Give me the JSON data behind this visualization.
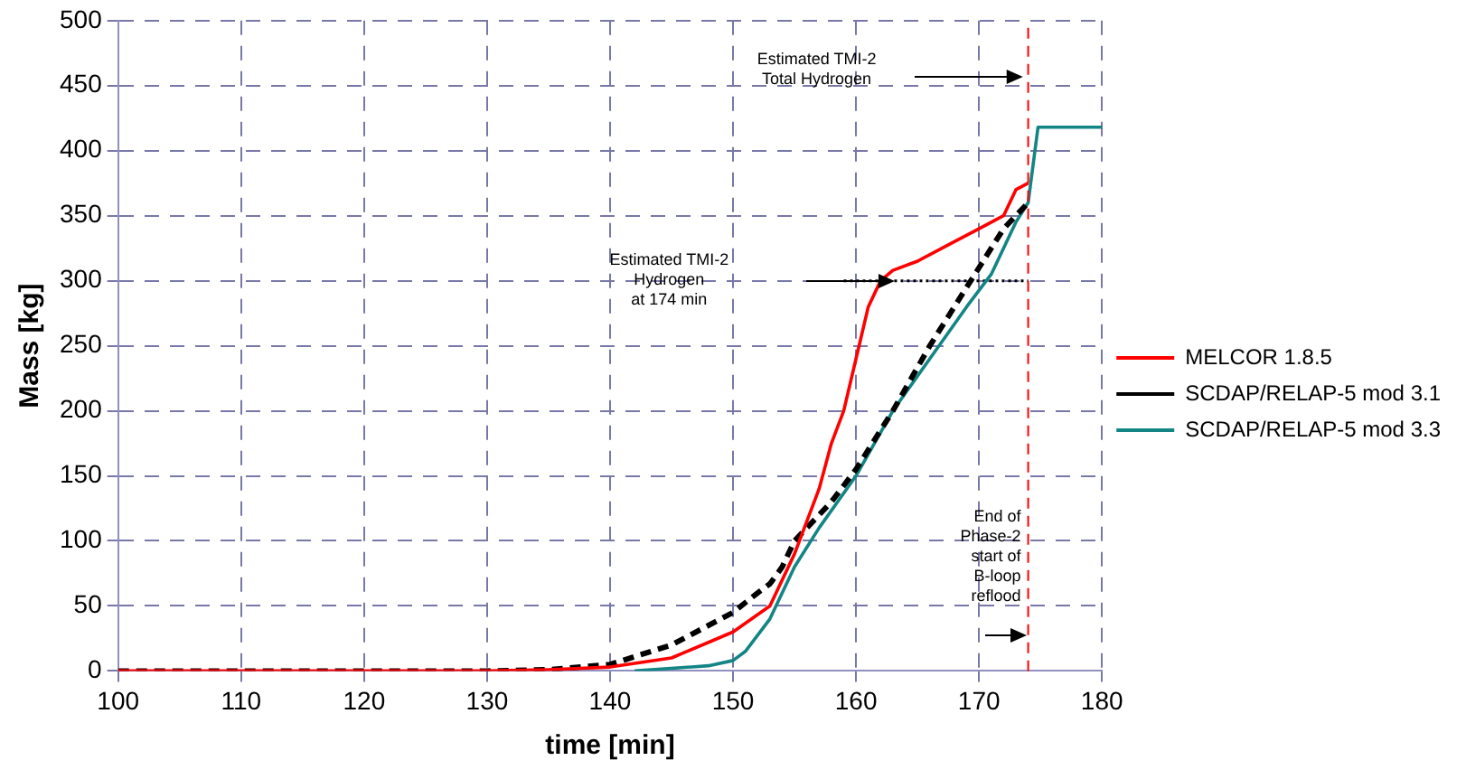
{
  "chart_data": {
    "type": "line",
    "xlabel": "time [min]",
    "ylabel": "Mass [kg]",
    "xlim": [
      100,
      180
    ],
    "xticks": [
      100,
      110,
      120,
      130,
      140,
      150,
      160,
      170,
      180
    ],
    "ylim": [
      0,
      500
    ],
    "yticks": [
      0,
      50,
      100,
      150,
      200,
      250,
      300,
      350,
      400,
      450,
      500
    ],
    "grid": true,
    "legend": "right",
    "marker": "none",
    "series": [
      {
        "name": "MELCOR 1.8.5",
        "color": "#ff0000",
        "line_style": "solid",
        "x": [
          100,
          130,
          135,
          140,
          145,
          150,
          153,
          155,
          157,
          158,
          159,
          160,
          161,
          162,
          163,
          165,
          168,
          170,
          172,
          173,
          174
        ],
        "values": [
          0,
          0,
          1,
          3,
          10,
          30,
          50,
          90,
          140,
          175,
          200,
          240,
          280,
          300,
          308,
          315,
          330,
          340,
          350,
          370,
          375
        ]
      },
      {
        "name": "SCDAP/RELAP-5 mod 3.1",
        "color": "#000000",
        "line_style": "dashed",
        "x": [
          100,
          130,
          135,
          140,
          145,
          150,
          152,
          153,
          154,
          155,
          158,
          160,
          163,
          166,
          168,
          170,
          172,
          174
        ],
        "values": [
          0,
          0,
          1,
          5,
          20,
          45,
          60,
          67,
          80,
          100,
          130,
          155,
          200,
          250,
          280,
          310,
          340,
          360
        ]
      },
      {
        "name": "SCDAP/RELAP-5 mod 3.3",
        "color": "#138585",
        "line_style": "solid",
        "x": [
          142,
          148,
          150,
          151,
          153,
          155,
          157,
          160,
          163,
          166,
          169,
          171,
          173,
          174,
          174.8,
          180
        ],
        "values": [
          0,
          4,
          8,
          15,
          40,
          80,
          110,
          150,
          200,
          240,
          280,
          305,
          345,
          360,
          418,
          418
        ]
      },
      {
        "color": "#000000",
        "line_style": "dotted",
        "x": [
          159,
          174
        ],
        "values": [
          300,
          300
        ]
      }
    ],
    "ref_lines": [
      {
        "axis": "x",
        "value": 174,
        "label": "End of\nPhase-2\nstart of\nB-loop\nreflood",
        "color": "#ff0000",
        "line_style": "dashed"
      }
    ],
    "annotations": [
      "Estimated TMI-2\nTotal Hydrogen",
      "Estimated TMI-2\nHydrogen\nat 174 min"
    ]
  }
}
